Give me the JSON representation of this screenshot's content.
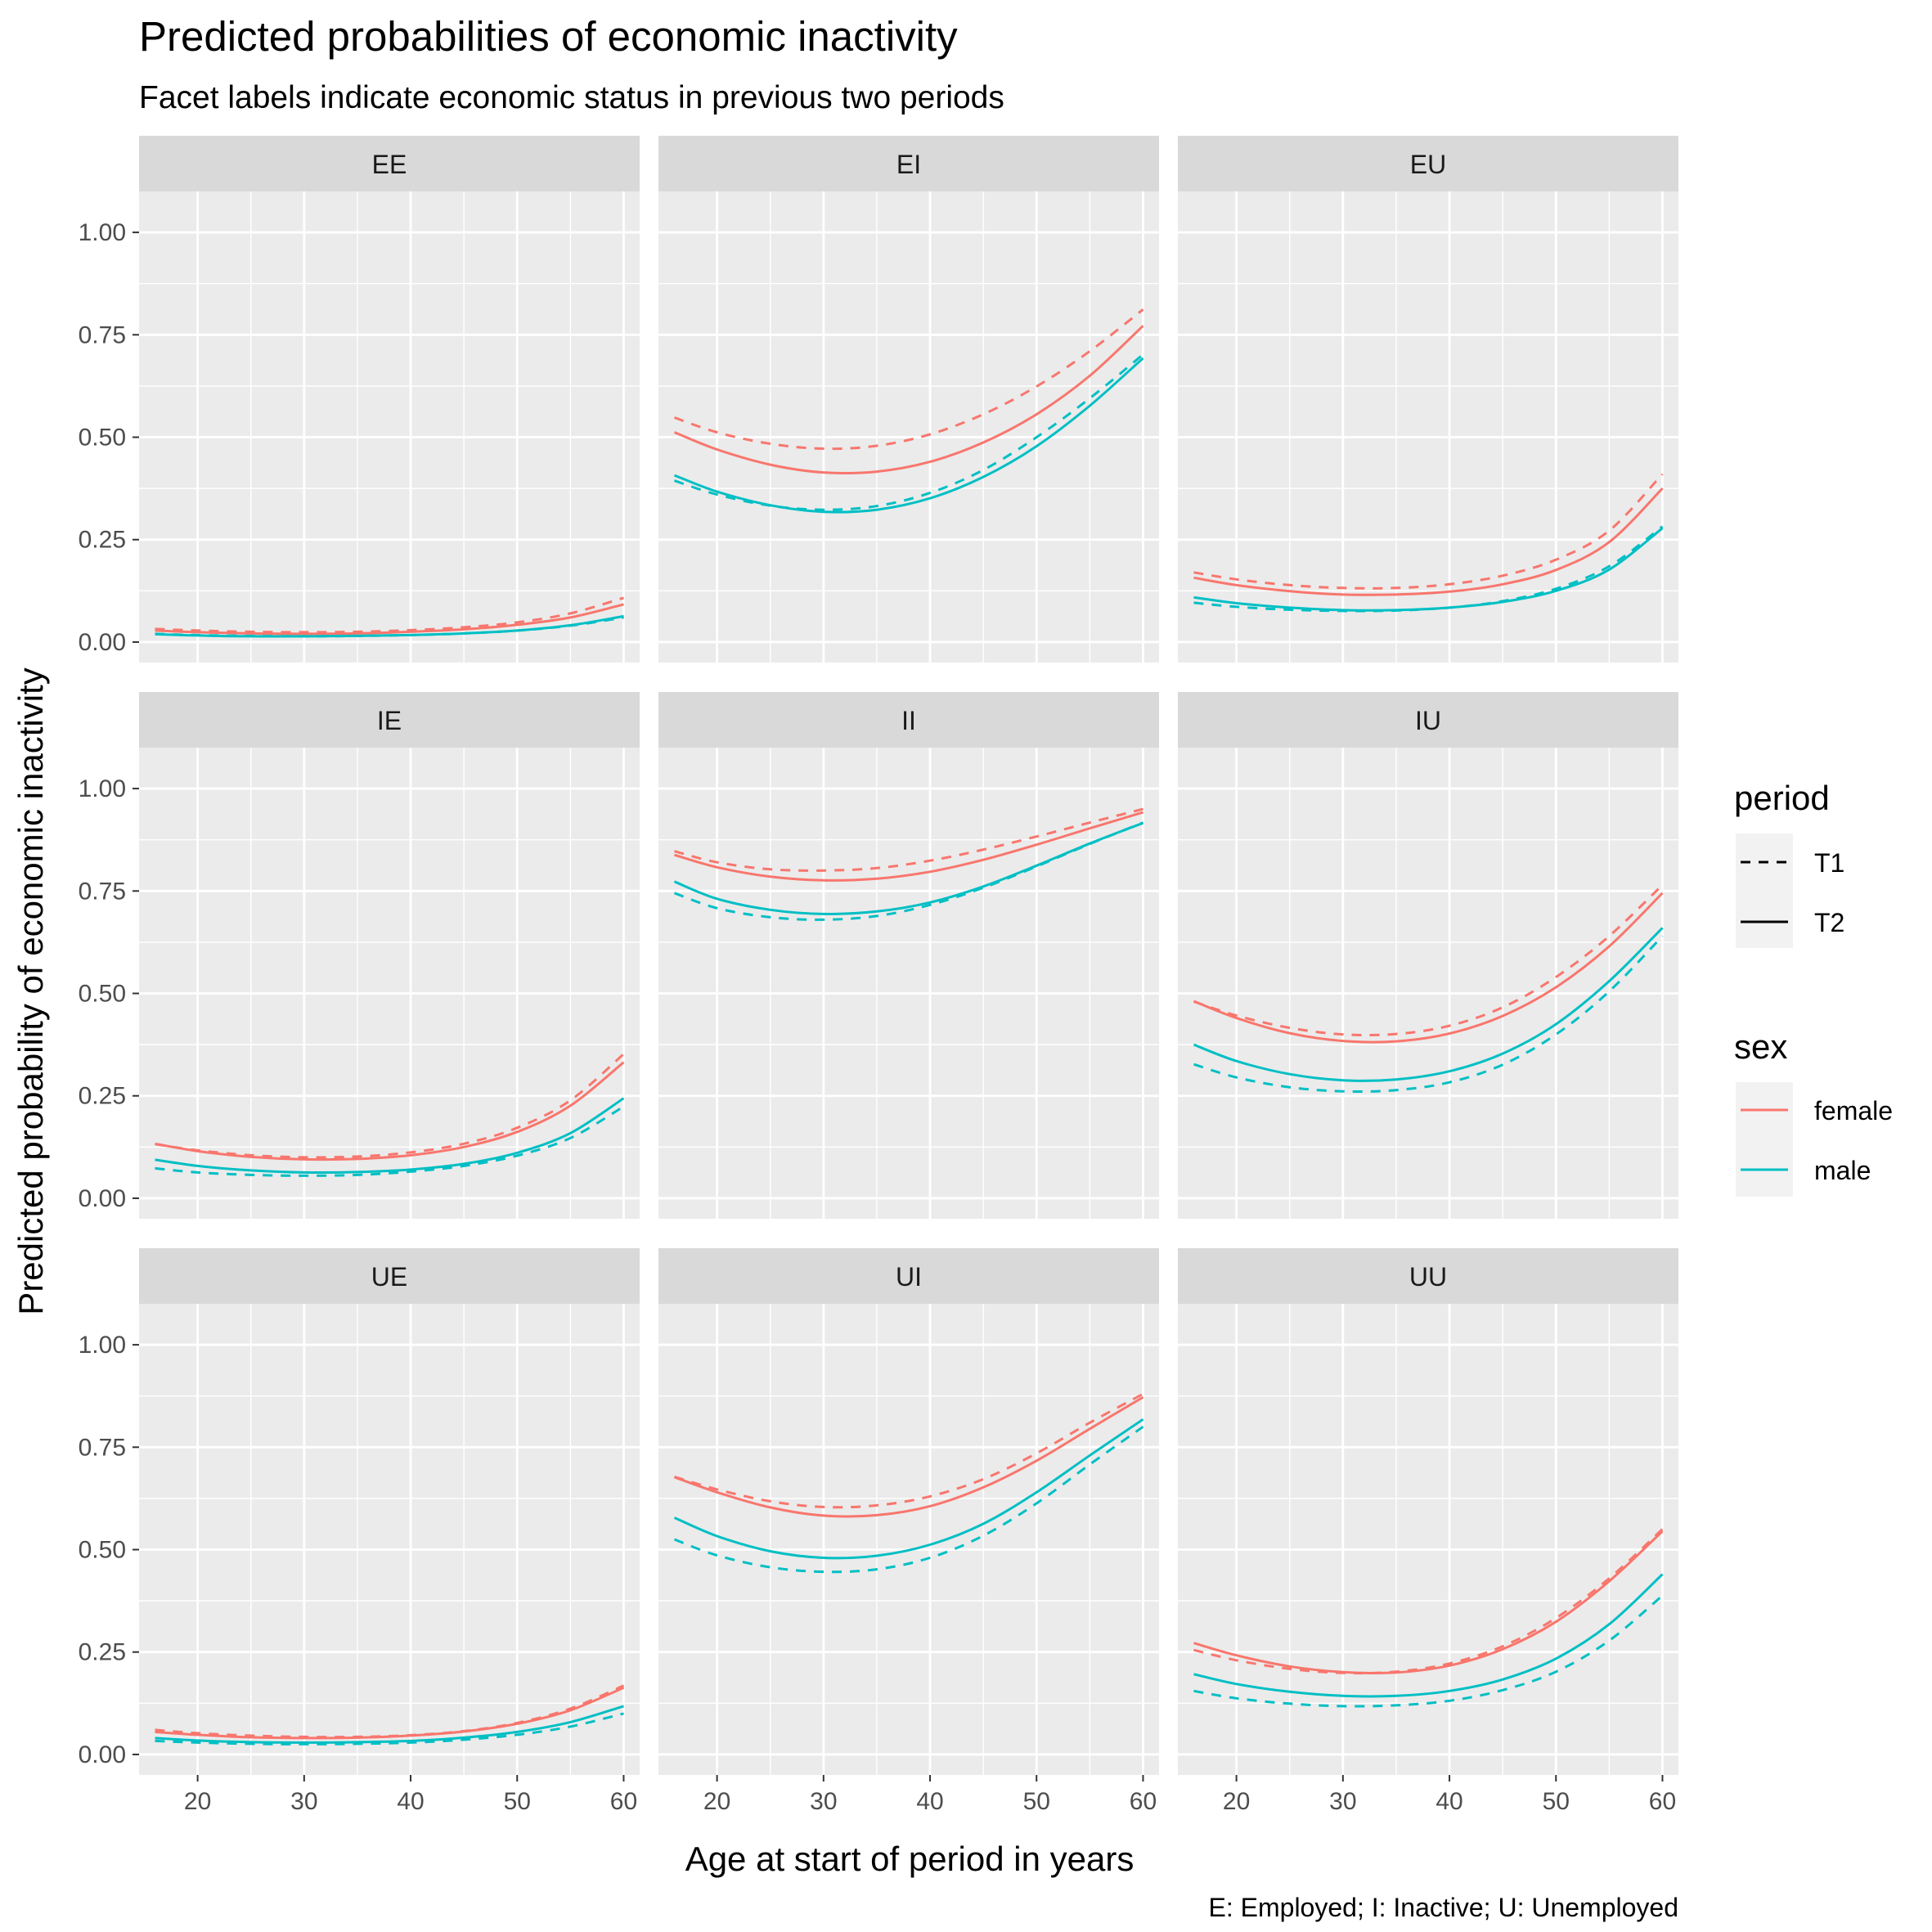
{
  "chart_data": {
    "type": "line",
    "title": "Predicted probabilities of economic inactivity",
    "subtitle": "Facet labels indicate economic status in previous two periods",
    "xlabel": "Age at start of period in years",
    "ylabel": "Predicted probability of economic inactivity",
    "caption": "E: Employed; I: Inactive; U: Unemployed",
    "xlim": [
      14.5,
      61.5
    ],
    "ylim": [
      -0.05,
      1.1
    ],
    "x_ticks": [
      20,
      30,
      40,
      50,
      60
    ],
    "x_tick_labels": [
      "20",
      "30",
      "40",
      "50",
      "60"
    ],
    "y_ticks": [
      0,
      0.25,
      0.5,
      0.75,
      1
    ],
    "y_tick_labels": [
      "0.00",
      "0.25",
      "0.50",
      "0.75",
      "1.00"
    ],
    "grid": true,
    "legend_position": "right",
    "legend": {
      "period": {
        "title": "period",
        "entries": [
          {
            "label": "T1",
            "linetype": "dashed"
          },
          {
            "label": "T2",
            "linetype": "solid"
          }
        ]
      },
      "sex": {
        "title": "sex",
        "entries": [
          {
            "label": "female",
            "color": "#F8766D"
          },
          {
            "label": "male",
            "color": "#00BFC4"
          }
        ]
      }
    },
    "colors": {
      "female": "#F8766D",
      "male": "#00BFC4"
    },
    "x": [
      16,
      20,
      25,
      30,
      35,
      40,
      45,
      50,
      55,
      60
    ],
    "facets": [
      {
        "label": "EE",
        "series": [
          {
            "sex": "female",
            "period": "T1",
            "values": [
              0.032,
              0.028,
              0.025,
              0.024,
              0.025,
              0.029,
              0.036,
              0.048,
              0.07,
              0.108
            ]
          },
          {
            "sex": "female",
            "period": "T2",
            "values": [
              0.028,
              0.024,
              0.021,
              0.02,
              0.021,
              0.025,
              0.031,
              0.042,
              0.06,
              0.092
            ]
          },
          {
            "sex": "male",
            "period": "T1",
            "values": [
              0.02,
              0.017,
              0.015,
              0.014,
              0.015,
              0.017,
              0.021,
              0.028,
              0.04,
              0.06
            ]
          },
          {
            "sex": "male",
            "period": "T2",
            "values": [
              0.019,
              0.016,
              0.014,
              0.014,
              0.015,
              0.017,
              0.021,
              0.028,
              0.041,
              0.063
            ]
          }
        ]
      },
      {
        "label": "EI",
        "series": [
          {
            "sex": "female",
            "period": "T1",
            "values": [
              0.548,
              0.512,
              0.484,
              0.472,
              0.479,
              0.507,
              0.556,
              0.624,
              0.71,
              0.812
            ]
          },
          {
            "sex": "female",
            "period": "T2",
            "values": [
              0.512,
              0.47,
              0.433,
              0.414,
              0.416,
              0.44,
              0.487,
              0.556,
              0.65,
              0.772
            ]
          },
          {
            "sex": "male",
            "period": "T1",
            "values": [
              0.394,
              0.36,
              0.333,
              0.323,
              0.332,
              0.364,
              0.42,
              0.5,
              0.595,
              0.702
            ]
          },
          {
            "sex": "male",
            "period": "T2",
            "values": [
              0.407,
              0.367,
              0.334,
              0.318,
              0.323,
              0.351,
              0.403,
              0.478,
              0.577,
              0.693
            ]
          }
        ]
      },
      {
        "label": "EU",
        "series": [
          {
            "sex": "female",
            "period": "T1",
            "values": [
              0.17,
              0.153,
              0.139,
              0.132,
              0.132,
              0.141,
              0.162,
              0.201,
              0.272,
              0.41
            ]
          },
          {
            "sex": "female",
            "period": "T2",
            "values": [
              0.157,
              0.139,
              0.124,
              0.116,
              0.116,
              0.123,
              0.141,
              0.176,
              0.244,
              0.375
            ]
          },
          {
            "sex": "male",
            "period": "T1",
            "values": [
              0.096,
              0.086,
              0.079,
              0.076,
              0.077,
              0.084,
              0.1,
              0.13,
              0.185,
              0.282
            ]
          },
          {
            "sex": "male",
            "period": "T2",
            "values": [
              0.109,
              0.095,
              0.084,
              0.078,
              0.078,
              0.084,
              0.098,
              0.125,
              0.177,
              0.278
            ]
          }
        ]
      },
      {
        "label": "IE",
        "series": [
          {
            "sex": "female",
            "period": "T1",
            "values": [
              0.132,
              0.117,
              0.105,
              0.1,
              0.102,
              0.112,
              0.133,
              0.172,
              0.239,
              0.352
            ]
          },
          {
            "sex": "female",
            "period": "T2",
            "values": [
              0.133,
              0.115,
              0.101,
              0.095,
              0.096,
              0.105,
              0.125,
              0.162,
              0.226,
              0.332
            ]
          },
          {
            "sex": "male",
            "period": "T1",
            "values": [
              0.073,
              0.063,
              0.057,
              0.055,
              0.057,
              0.065,
              0.079,
              0.104,
              0.147,
              0.224
            ]
          },
          {
            "sex": "male",
            "period": "T2",
            "values": [
              0.094,
              0.079,
              0.068,
              0.063,
              0.064,
              0.07,
              0.084,
              0.111,
              0.159,
              0.244
            ]
          }
        ]
      },
      {
        "label": "II",
        "series": [
          {
            "sex": "female",
            "period": "T1",
            "values": [
              0.847,
              0.82,
              0.803,
              0.8,
              0.806,
              0.824,
              0.851,
              0.883,
              0.917,
              0.95
            ]
          },
          {
            "sex": "female",
            "period": "T2",
            "values": [
              0.838,
              0.808,
              0.785,
              0.776,
              0.78,
              0.797,
              0.826,
              0.863,
              0.903,
              0.942
            ]
          },
          {
            "sex": "male",
            "period": "T1",
            "values": [
              0.745,
              0.708,
              0.686,
              0.68,
              0.689,
              0.716,
              0.758,
              0.81,
              0.865,
              0.917
            ]
          },
          {
            "sex": "male",
            "period": "T2",
            "values": [
              0.773,
              0.731,
              0.704,
              0.694,
              0.7,
              0.722,
              0.761,
              0.812,
              0.866,
              0.916
            ]
          }
        ]
      },
      {
        "label": "IU",
        "series": [
          {
            "sex": "female",
            "period": "T1",
            "values": [
              0.48,
              0.446,
              0.416,
              0.4,
              0.401,
              0.421,
              0.466,
              0.54,
              0.64,
              0.765
            ]
          },
          {
            "sex": "female",
            "period": "T2",
            "values": [
              0.481,
              0.44,
              0.403,
              0.384,
              0.383,
              0.402,
              0.445,
              0.515,
              0.615,
              0.745
            ]
          },
          {
            "sex": "male",
            "period": "T1",
            "values": [
              0.327,
              0.295,
              0.271,
              0.261,
              0.264,
              0.283,
              0.326,
              0.4,
              0.505,
              0.64
            ]
          },
          {
            "sex": "male",
            "period": "T2",
            "values": [
              0.375,
              0.335,
              0.303,
              0.288,
              0.29,
              0.31,
              0.353,
              0.425,
              0.53,
              0.66
            ]
          }
        ]
      },
      {
        "label": "UE",
        "series": [
          {
            "sex": "female",
            "period": "T1",
            "values": [
              0.06,
              0.052,
              0.046,
              0.043,
              0.043,
              0.047,
              0.057,
              0.077,
              0.112,
              0.168
            ]
          },
          {
            "sex": "female",
            "period": "T2",
            "values": [
              0.055,
              0.048,
              0.042,
              0.04,
              0.041,
              0.046,
              0.056,
              0.075,
              0.108,
              0.163
            ]
          },
          {
            "sex": "male",
            "period": "T1",
            "values": [
              0.033,
              0.029,
              0.026,
              0.025,
              0.026,
              0.029,
              0.036,
              0.048,
              0.068,
              0.1
            ]
          },
          {
            "sex": "male",
            "period": "T2",
            "values": [
              0.04,
              0.034,
              0.03,
              0.029,
              0.03,
              0.033,
              0.041,
              0.055,
              0.079,
              0.118
            ]
          }
        ]
      },
      {
        "label": "UI",
        "series": [
          {
            "sex": "female",
            "period": "T1",
            "values": [
              0.678,
              0.647,
              0.618,
              0.604,
              0.608,
              0.63,
              0.672,
              0.735,
              0.81,
              0.88
            ]
          },
          {
            "sex": "female",
            "period": "T2",
            "values": [
              0.677,
              0.64,
              0.603,
              0.583,
              0.584,
              0.606,
              0.652,
              0.717,
              0.795,
              0.872
            ]
          },
          {
            "sex": "male",
            "period": "T1",
            "values": [
              0.525,
              0.486,
              0.457,
              0.446,
              0.452,
              0.48,
              0.534,
              0.613,
              0.708,
              0.8
            ]
          },
          {
            "sex": "male",
            "period": "T2",
            "values": [
              0.578,
              0.533,
              0.496,
              0.48,
              0.485,
              0.512,
              0.563,
              0.64,
              0.73,
              0.818
            ]
          }
        ]
      },
      {
        "label": "UU",
        "series": [
          {
            "sex": "female",
            "period": "T1",
            "values": [
              0.255,
              0.23,
              0.209,
              0.199,
              0.202,
              0.222,
              0.264,
              0.333,
              0.43,
              0.55
            ]
          },
          {
            "sex": "female",
            "period": "T2",
            "values": [
              0.272,
              0.242,
              0.215,
              0.201,
              0.2,
              0.217,
              0.257,
              0.324,
              0.423,
              0.545
            ]
          },
          {
            "sex": "male",
            "period": "T1",
            "values": [
              0.155,
              0.137,
              0.124,
              0.118,
              0.12,
              0.131,
              0.157,
              0.202,
              0.278,
              0.388
            ]
          },
          {
            "sex": "male",
            "period": "T2",
            "values": [
              0.196,
              0.172,
              0.153,
              0.143,
              0.143,
              0.155,
              0.183,
              0.234,
              0.318,
              0.44
            ]
          }
        ]
      }
    ]
  }
}
